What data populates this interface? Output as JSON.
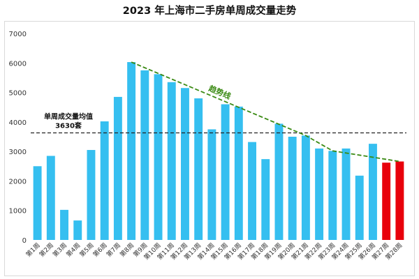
{
  "chart_data": {
    "type": "bar",
    "title": "2023 年上海市二手房单周成交量走势",
    "categories": [
      "第1周",
      "第2周",
      "第3周",
      "第4周",
      "第5周",
      "第6周",
      "第7周",
      "第8周",
      "第9周",
      "第10周",
      "第11周",
      "第12周",
      "第13周",
      "第14周",
      "第15周",
      "第16周",
      "第17周",
      "第18周",
      "第19周",
      "第20周",
      "第21周",
      "第22周",
      "第23周",
      "第24周",
      "第25周",
      "第26周",
      "第27周",
      "第28周"
    ],
    "values": [
      2500,
      2850,
      1020,
      660,
      3050,
      4020,
      4850,
      6030,
      5750,
      5620,
      5350,
      5150,
      4800,
      3750,
      4600,
      4520,
      3320,
      2740,
      3940,
      3500,
      3540,
      3100,
      3020,
      3100,
      2180,
      3260,
      2620,
      2660
    ],
    "highlight_last": 2,
    "ylim": [
      0,
      7000
    ],
    "yticks": [
      0,
      1000,
      2000,
      3000,
      4000,
      5000,
      6000,
      7000
    ],
    "grid": false,
    "colors": {
      "bar": "#35bff0",
      "highlight": "#e8000b",
      "trend": "#3a8a13",
      "average_line": "#222222"
    },
    "average": {
      "label": "单周成交量均值",
      "value_label": "3630套",
      "value": 3630
    },
    "trend": {
      "label": "趋势线",
      "points": [
        [
          8,
          6030
        ],
        [
          21,
          3540
        ],
        [
          23,
          3020
        ],
        [
          28,
          2660
        ]
      ]
    }
  }
}
